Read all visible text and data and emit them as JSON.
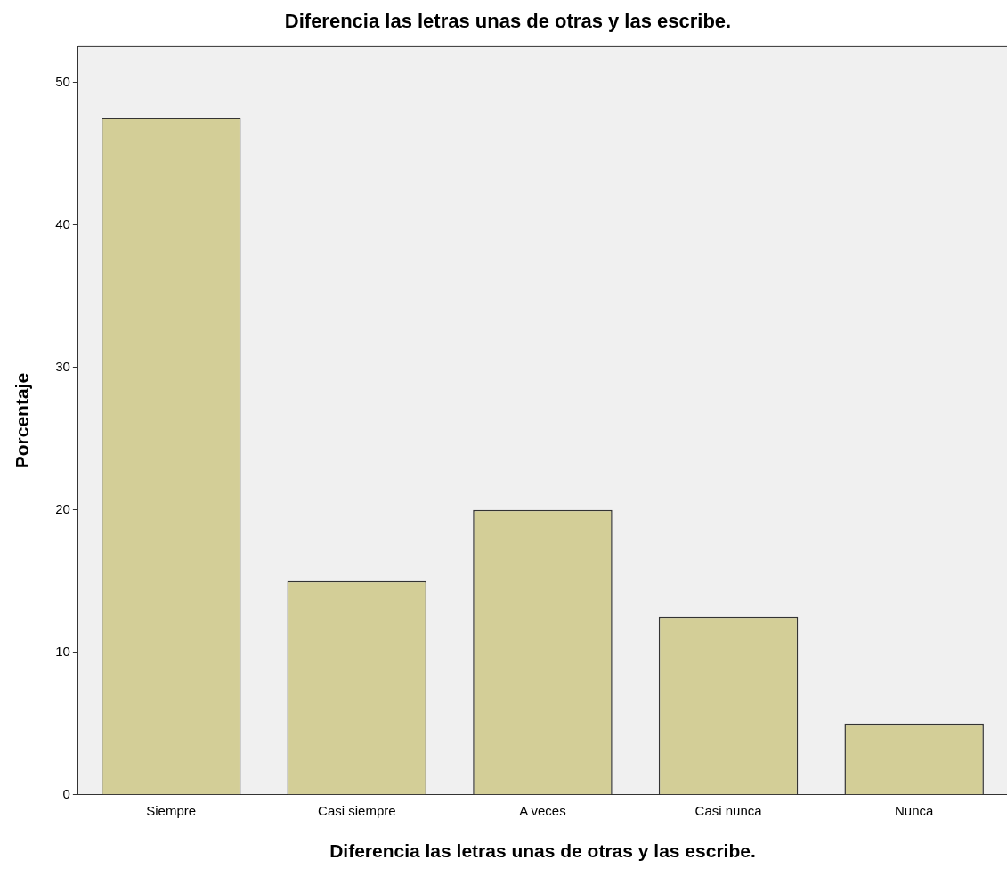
{
  "chart_data": {
    "type": "bar",
    "title": "Diferencia las letras unas de otras y las escribe.",
    "xlabel": "Diferencia las letras unas de otras y las escribe.",
    "ylabel": "Porcentaje",
    "categories": [
      "Siempre",
      "Casi siempre",
      "A veces",
      "Casi nunca",
      "Nunca"
    ],
    "values": [
      47.5,
      15,
      20,
      12.5,
      5
    ],
    "color": "#d3ce97",
    "ylim": [
      0,
      52.5
    ],
    "yticks": [
      0,
      10,
      20,
      30,
      40,
      50
    ],
    "grid": false,
    "legend": false
  }
}
